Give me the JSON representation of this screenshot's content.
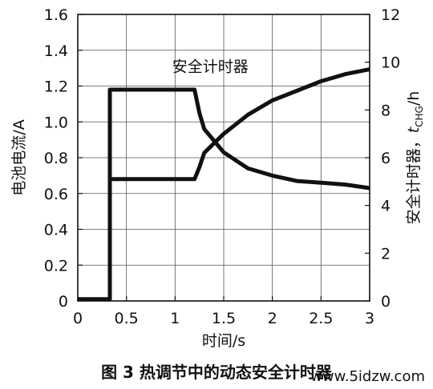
{
  "chart_data": {
    "type": "line",
    "x": [
      0,
      0.33,
      0.33,
      0.34,
      0.5,
      1.0,
      1.2,
      1.25,
      1.3,
      1.5,
      1.75,
      2.0,
      2.25,
      2.5,
      2.75,
      3.0
    ],
    "xlabel": "时间/s",
    "xlim": [
      0,
      3
    ],
    "xticks": [
      "0",
      "0.5",
      "1",
      "1.5",
      "2",
      "2.5",
      "3"
    ],
    "ylabel_left": "电池电流/A",
    "ylim_left": [
      0,
      1.6
    ],
    "yticks_left": [
      "0",
      "0.2",
      "0.4",
      "0.6",
      "0.8",
      "1.0",
      "1.2",
      "1.4",
      "1.6"
    ],
    "ylabel_right_prefix": "安全计时器，",
    "ylabel_right_var": "t",
    "ylabel_right_sub": "CHG",
    "ylabel_right_suffix": "/h",
    "ylim_right": [
      0,
      12
    ],
    "yticks_right": [
      "0",
      "2",
      "4",
      "6",
      "8",
      "10",
      "12"
    ],
    "grid": true,
    "series": [
      {
        "name": "",
        "axis": "left",
        "color": "#111111",
        "values": [
          0.01,
          0.01,
          1.18,
          1.18,
          1.18,
          1.18,
          1.18,
          1.05,
          0.96,
          0.83,
          0.74,
          0.7,
          0.67,
          0.66,
          0.65,
          0.63
        ]
      },
      {
        "name": "安全计时器",
        "axis": "right",
        "color": "#111111",
        "values": [
          null,
          null,
          null,
          5.1,
          5.1,
          5.1,
          5.1,
          5.6,
          6.2,
          7.0,
          7.8,
          8.4,
          8.8,
          9.2,
          9.5,
          9.7
        ]
      }
    ],
    "annotations": [
      {
        "text": "安全计时器",
        "x": 1.3,
        "y_right": 9.6
      }
    ]
  },
  "caption": "图 3  热调节中的动态安全计时器",
  "watermark": "www.5idzw.com"
}
